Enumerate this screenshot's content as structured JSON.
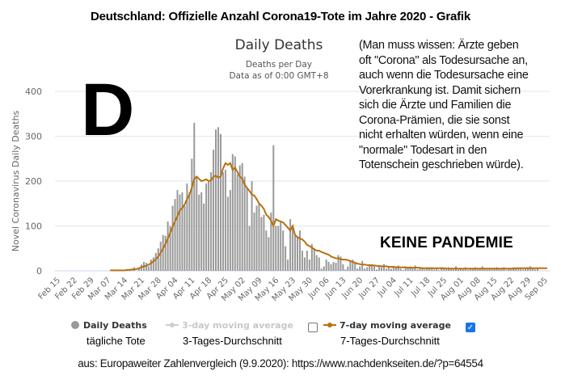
{
  "header": {
    "title": "Deutschland: Offizielle Anzahl Corona19-Tote im Jahre 2020 - Grafik"
  },
  "annotation": {
    "big_letter": "D",
    "note": "(Man muss wissen: Ärzte geben oft \"Corona\" als Todesursache an, auch wenn die Todesursache eine Vorerkrankung ist. Damit sichern sich die Ärzte und Familien die Corona-Prämien, die sie sonst nicht erhalten würden, wenn eine \"normale\" Todesart in den Totenschein geschrieben würde).",
    "note_lines": [
      "(Man muss wissen: Ärzte geben",
      "oft \"Corona\" als Todesursache an,",
      "auch wenn die Todesursache eine",
      "Vorerkrankung ist. Damit sichern",
      "sich die Ärzte und Familien die",
      "Corona-Prämien, die sie sonst",
      "nicht erhalten würden, wenn eine",
      "\"normale\" Todesart in den",
      "Totenschein geschrieben würde)."
    ],
    "stamp": "KEINE PANDEMIE"
  },
  "legend": {
    "items": [
      {
        "label": "Daily Deaths",
        "label_de": "tägliche Tote",
        "color": "#999999",
        "active": true
      },
      {
        "label": "3-day moving average",
        "label_de": "3-Tages-Durchschnitt",
        "color": "#cccccc",
        "active": false,
        "checked": false
      },
      {
        "label": "7-day moving average",
        "label_de": "7-Tages-Durchschnitt",
        "color": "#b8700f",
        "active": true,
        "checked": true
      }
    ]
  },
  "source": {
    "text": "aus: Europaweiter Zahlenvergleich (9.9.2020): https://www.nachdenkseiten.de/?p=64554"
  },
  "chart_data": {
    "type": "bar",
    "title": "Daily Deaths",
    "subtitle": "Deaths per Day",
    "subtitle2": "Data as of 0:00 GMT+8",
    "xlabel": "",
    "ylabel": "Novel Coronavirus Daily Deaths",
    "ylim": [
      0,
      400
    ],
    "yticks": [
      0,
      100,
      200,
      300,
      400
    ],
    "grid": true,
    "legend_position": "bottom",
    "categories": [
      "Feb 15",
      "Feb 22",
      "Feb 29",
      "Mar 07",
      "Mar 14",
      "Mar 21",
      "Mar 28",
      "Apr 04",
      "Apr 11",
      "Apr 18",
      "Apr 25",
      "May 02",
      "May 09",
      "May 16",
      "May 23",
      "May 30",
      "Jun 06",
      "Jun 13",
      "Jun 20",
      "Jun 27",
      "Jul 04",
      "Jul 11",
      "Jul 18",
      "Jul 25",
      "Aug 01",
      "Aug 08",
      "Aug 15",
      "Aug 22",
      "Aug 29",
      "Sep 05"
    ],
    "series": [
      {
        "name": "Daily Deaths",
        "type": "bar",
        "color": "#999999",
        "start_date": "Mar 09",
        "values": [
          1,
          0,
          0,
          2,
          2,
          0,
          1,
          4,
          1,
          8,
          0,
          5,
          14,
          20,
          18,
          10,
          25,
          30,
          40,
          50,
          65,
          80,
          78,
          110,
          100,
          145,
          160,
          180,
          170,
          175,
          145,
          195,
          175,
          250,
          330,
          210,
          170,
          175,
          150,
          195,
          200,
          220,
          270,
          315,
          320,
          305,
          220,
          225,
          165,
          180,
          260,
          255,
          215,
          235,
          240,
          210,
          185,
          100,
          200,
          130,
          145,
          150,
          120,
          125,
          90,
          75,
          130,
          280,
          100,
          100,
          110,
          90,
          55,
          25,
          115,
          100,
          80,
          75,
          90,
          45,
          30,
          45,
          25,
          60,
          50,
          35,
          30,
          5,
          10,
          25,
          20,
          15,
          20,
          18,
          35,
          32,
          15,
          3,
          10,
          22,
          25,
          18,
          5,
          10,
          22,
          5,
          8,
          15,
          15,
          10,
          3,
          12,
          8,
          15,
          5,
          10,
          5,
          8,
          10,
          12,
          5,
          2,
          10,
          8,
          10,
          5,
          12,
          3,
          8,
          5,
          3,
          8,
          5,
          8,
          3,
          5,
          2,
          8,
          5,
          3,
          8,
          5,
          3,
          10,
          3,
          5,
          3,
          8,
          2,
          5,
          5,
          8,
          3,
          5,
          10,
          5,
          3,
          5,
          3,
          5,
          8,
          3,
          5,
          8,
          2,
          5,
          3,
          8,
          5,
          6,
          5,
          3,
          5,
          8,
          10,
          5,
          3,
          5
        ]
      },
      {
        "name": "7-day moving average",
        "type": "line",
        "color": "#b8700f",
        "start_date": "Mar 09",
        "values": [
          1,
          1,
          1,
          1,
          1,
          1,
          1,
          2,
          2,
          3,
          3,
          4,
          6,
          8,
          10,
          11,
          14,
          17,
          21,
          26,
          32,
          40,
          50,
          60,
          72,
          85,
          98,
          110,
          122,
          135,
          140,
          148,
          160,
          170,
          185,
          205,
          210,
          205,
          200,
          202,
          204,
          200,
          202,
          210,
          212,
          208,
          210,
          228,
          240,
          236,
          240,
          225,
          230,
          220,
          210,
          205,
          192,
          185,
          178,
          170,
          168,
          160,
          150,
          145,
          138,
          125,
          120,
          112,
          100,
          115,
          112,
          110,
          108,
          102,
          96,
          90,
          100,
          80,
          75,
          72,
          70,
          65,
          58,
          55,
          52,
          48,
          45,
          45,
          42,
          40,
          38,
          36,
          32,
          30,
          28,
          28,
          26,
          25,
          25,
          24,
          22,
          20,
          18,
          16,
          15,
          14,
          14,
          13,
          12,
          12,
          12,
          11,
          11,
          10,
          10,
          10,
          9,
          9,
          9,
          8,
          8,
          8,
          8,
          8,
          7,
          7,
          7,
          7,
          7,
          7,
          6,
          6,
          6,
          6,
          6,
          6,
          6,
          6,
          6,
          6,
          5,
          5,
          5,
          5,
          5,
          5,
          5,
          5,
          5,
          5,
          5,
          5,
          5,
          5,
          5,
          5,
          5,
          5,
          5,
          5,
          5,
          5,
          5,
          5,
          5,
          5,
          5,
          5,
          5,
          6,
          6,
          6,
          6,
          6,
          6,
          6,
          6,
          6,
          6,
          6,
          6,
          6,
          6
        ]
      }
    ],
    "x_range": [
      "Feb 15",
      "Sep 08"
    ]
  }
}
